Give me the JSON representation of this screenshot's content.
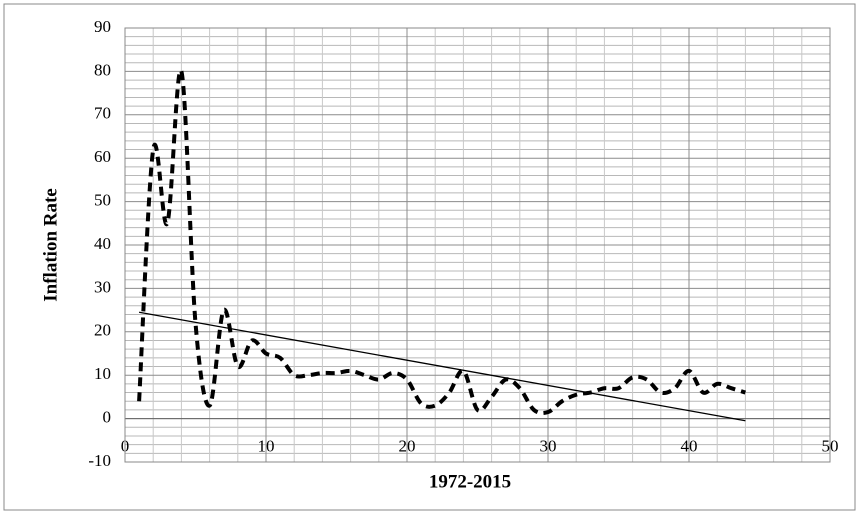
{
  "chart_data": {
    "type": "line",
    "x_label": "1972-2015",
    "y_label": "Inflation Rate",
    "xlim": [
      0,
      50
    ],
    "xticks": [
      0,
      10,
      20,
      30,
      40,
      50
    ],
    "ylim": [
      -10,
      90
    ],
    "yticks": [
      -10,
      0,
      10,
      20,
      30,
      40,
      50,
      60,
      70,
      80,
      90
    ],
    "grid": true,
    "minor_grid": true,
    "series": [
      {
        "color": "#000000",
        "style": "dashed",
        "smooth": true,
        "x": [
          1,
          2,
          3,
          4,
          5,
          6,
          7,
          8,
          9,
          10,
          11,
          12,
          13,
          14,
          15,
          16,
          17,
          18,
          19,
          20,
          21,
          22,
          23,
          24,
          25,
          26,
          27,
          28,
          29,
          30,
          31,
          32,
          33,
          34,
          35,
          36,
          37,
          38,
          39,
          40,
          41,
          42,
          43,
          44
        ],
        "values": [
          4,
          62,
          45,
          80,
          22,
          3,
          25,
          12,
          18,
          15,
          14,
          10,
          10,
          10.5,
          10.5,
          11,
          10,
          9,
          10.5,
          9,
          3.5,
          3,
          6,
          11,
          2,
          5,
          9,
          7,
          2,
          1.5,
          4,
          5.5,
          6,
          7,
          7,
          9.5,
          9,
          6,
          7,
          11,
          6,
          8,
          7,
          6
        ]
      },
      {
        "color": "#000000",
        "style": "solid",
        "smooth": false,
        "x": [
          1,
          44
        ],
        "values": [
          24.5,
          -0.5
        ]
      }
    ]
  }
}
